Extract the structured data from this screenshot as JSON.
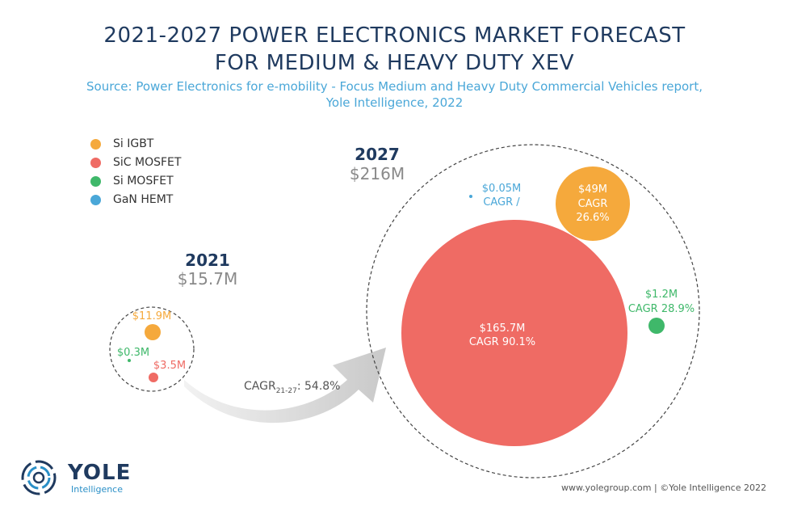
{
  "header": {
    "title_line1": "2021-2027 POWER ELECTRONICS MARKET FORECAST",
    "title_line2": "FOR MEDIUM & HEAVY DUTY XEV",
    "source_line1": "Source: Power Electronics for e-mobility - Focus Medium and Heavy Duty Commercial Vehicles report,",
    "source_line2": "Yole Intelligence, 2022"
  },
  "legend": [
    {
      "label": "Si IGBT",
      "color": "#f5a93c"
    },
    {
      "label": "SiC MOSFET",
      "color": "#ef6b64"
    },
    {
      "label": "Si MOSFET",
      "color": "#3fb86a"
    },
    {
      "label": "GaN HEMT",
      "color": "#4aa7d8"
    }
  ],
  "chart_data": {
    "type": "bubble",
    "title": "2021-2027 POWER ELECTRONICS MARKET FORECAST FOR MEDIUM & HEAVY DUTY XEV",
    "unit": "$M",
    "groups": [
      {
        "year": "2021",
        "total_label": "$15.7M",
        "total": 15.7,
        "segments": [
          {
            "name": "Si IGBT",
            "value": 11.9,
            "label": "$11.9M",
            "cagr": ""
          },
          {
            "name": "SiC MOSFET",
            "value": 3.5,
            "label": "$3.5M",
            "cagr": ""
          },
          {
            "name": "Si MOSFET",
            "value": 0.3,
            "label": "$0.3M",
            "cagr": ""
          }
        ]
      },
      {
        "year": "2027",
        "total_label": "$216M",
        "total": 216,
        "segments": [
          {
            "name": "SiC MOSFET",
            "value": 165.7,
            "label": "$165.7M",
            "cagr": "CAGR 90.1%"
          },
          {
            "name": "Si IGBT",
            "value": 49,
            "label": "$49M",
            "cagr": "CAGR 26.6%"
          },
          {
            "name": "Si MOSFET",
            "value": 1.2,
            "label": "$1.2M",
            "cagr": "CAGR 28.9%"
          },
          {
            "name": "GaN HEMT",
            "value": 0.05,
            "label": "$0.05M",
            "cagr": "CAGR /"
          }
        ]
      }
    ],
    "arrow": {
      "label_prefix": "CAGR",
      "label_sub": "21-27",
      "label_value": ": 54.8%"
    }
  },
  "footer": {
    "url": "www.yolegroup.com | ©Yole Intelligence 2022",
    "logo_text": "YOLE",
    "logo_sub": "Intelligence"
  }
}
